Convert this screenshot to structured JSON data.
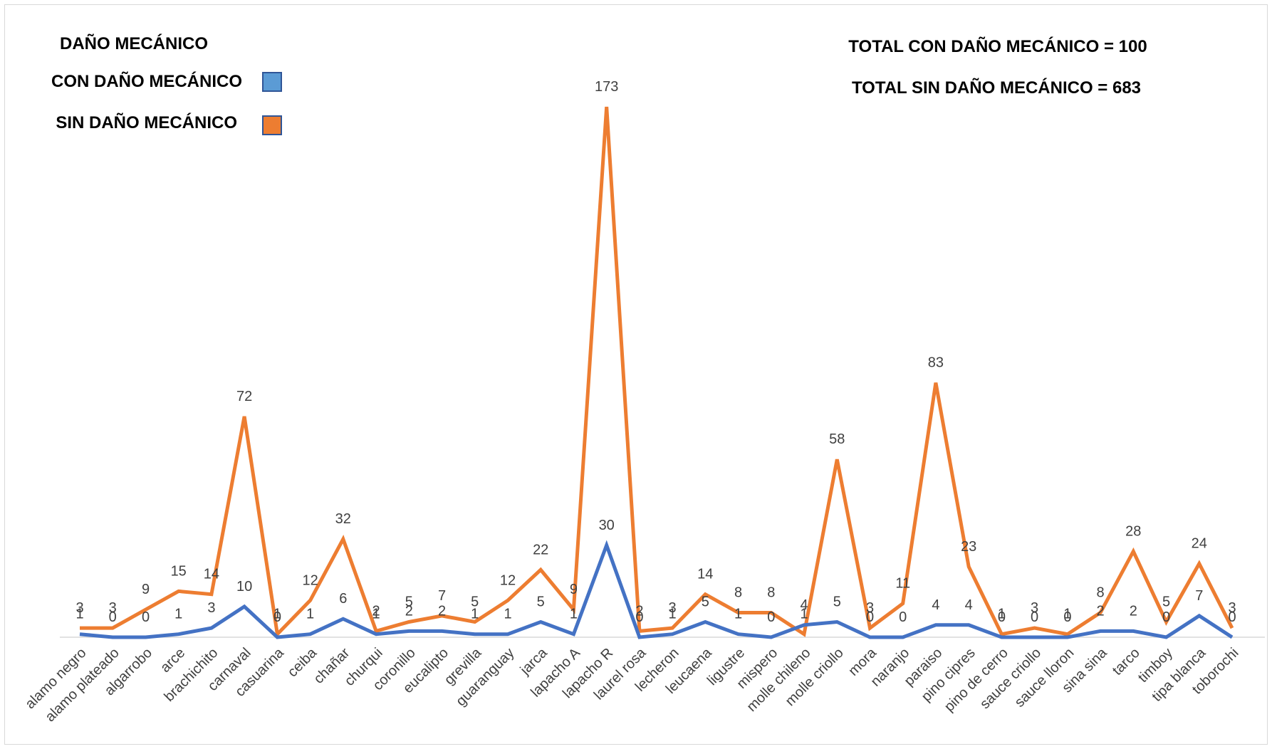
{
  "legend": {
    "title": "DAÑO MECÁNICO",
    "items": [
      {
        "label": "CON DAÑO MECÁNICO",
        "color": "#5b9bd5"
      },
      {
        "label": "SIN DAÑO MECÁNICO",
        "color": "#ed7d31"
      }
    ]
  },
  "totals": {
    "con": "TOTAL CON DAÑO MECÁNICO = 100",
    "sin": "TOTAL SIN DAÑO MECÁNICO = 683"
  },
  "chart_data": {
    "type": "line",
    "categories": [
      "alamo negro",
      "alamo plateado",
      "algarrobo",
      "arce",
      "brachichito",
      "carnaval",
      "casuarina",
      "ceiba",
      "chañar",
      "churqui",
      "coronillo",
      "eucalipto",
      "grevilla",
      "guaranguay",
      "jarca",
      "lapacho A",
      "lapacho R",
      "laurel rosa",
      "lecheron",
      "leucaena",
      "ligustre",
      "mispero",
      "molle chileno",
      "molle criollo",
      "mora",
      "naranjo",
      "paraiso",
      "pino cipres",
      "pino de cerro",
      "sauce criollo",
      "sauce lloron",
      "sina sina",
      "tarco",
      "timboy",
      "tipa blanca",
      "toborochi"
    ],
    "series": [
      {
        "name": "CON DAÑO MECÁNICO",
        "color": "#4472c4",
        "values": [
          1,
          0,
          0,
          1,
          3,
          10,
          0,
          1,
          6,
          1,
          2,
          2,
          1,
          1,
          5,
          1,
          30,
          0,
          1,
          5,
          1,
          0,
          4,
          5,
          0,
          0,
          4,
          4,
          0,
          0,
          0,
          2,
          2,
          0,
          7,
          0
        ]
      },
      {
        "name": "SIN DAÑO MECÁNICO",
        "color": "#ed7d31",
        "values": [
          3,
          3,
          9,
          15,
          14,
          72,
          1,
          12,
          32,
          2,
          5,
          7,
          5,
          12,
          22,
          9,
          173,
          2,
          3,
          14,
          8,
          8,
          1,
          58,
          3,
          11,
          83,
          23,
          1,
          3,
          1,
          8,
          28,
          5,
          24,
          3
        ]
      }
    ],
    "ylim": [
      0,
      173
    ],
    "grid": false,
    "legend_position": "top-left"
  }
}
